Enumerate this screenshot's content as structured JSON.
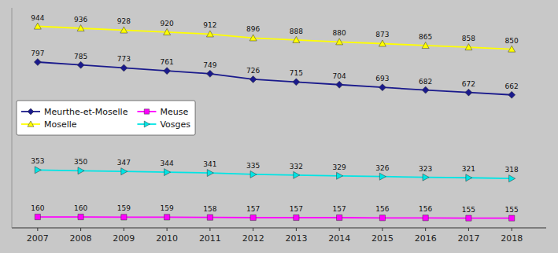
{
  "chart_data": {
    "type": "line",
    "x": [
      2007,
      2008,
      2009,
      2010,
      2011,
      2012,
      2013,
      2014,
      2015,
      2016,
      2017,
      2018
    ],
    "series": [
      {
        "name": "Meurthe-et-Moselle",
        "color": "#1a1a8c",
        "marker": "diamond",
        "values": [
          797,
          785,
          773,
          761,
          749,
          726,
          715,
          704,
          693,
          682,
          672,
          662
        ]
      },
      {
        "name": "Meuse",
        "color": "#ff00ff",
        "marker": "square",
        "values": [
          160,
          160,
          159,
          159,
          158,
          157,
          157,
          157,
          156,
          156,
          155,
          155
        ]
      },
      {
        "name": "Moselle",
        "color": "#ffff00",
        "marker": "triangle-up",
        "values": [
          944,
          936,
          928,
          920,
          912,
          896,
          888,
          880,
          873,
          865,
          858,
          850
        ]
      },
      {
        "name": "Vosges",
        "color": "#00e5e5",
        "marker": "triangle-right",
        "values": [
          353,
          350,
          347,
          344,
          341,
          335,
          332,
          329,
          326,
          323,
          321,
          318
        ]
      }
    ],
    "xlim": [
      2006.4,
      2018.8
    ],
    "xticks": [
      2007,
      2008,
      2009,
      2010,
      2011,
      2012,
      2013,
      2014,
      2015,
      2016,
      2017,
      2018
    ],
    "ylim": [
      115,
      1020
    ],
    "tick_labels": "x",
    "data_labels": true,
    "legend": "center left",
    "grid": false
  }
}
